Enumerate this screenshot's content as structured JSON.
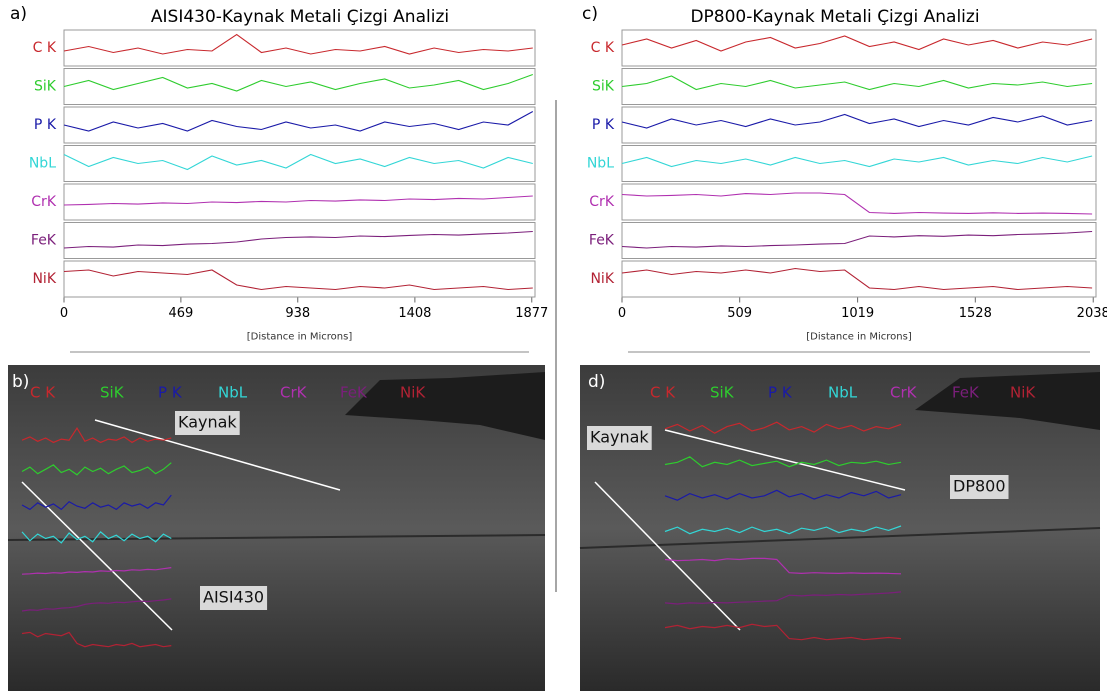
{
  "chart_data": [
    {
      "type": "line",
      "label": "a)",
      "title": "AISI430-Kaynak Metali Çizgi Analizi",
      "x_label": "[Distance in Microns]",
      "xlim": [
        0,
        1890
      ],
      "xticks": [
        0,
        469,
        938,
        1408,
        1877
      ],
      "x": [
        0,
        99,
        198,
        297,
        396,
        495,
        594,
        693,
        792,
        891,
        990,
        1089,
        1188,
        1287,
        1386,
        1485,
        1584,
        1683,
        1782,
        1881
      ],
      "series": [
        {
          "name": "C K",
          "color": "#c8282d",
          "values": [
            0.4,
            0.55,
            0.35,
            0.5,
            0.3,
            0.45,
            0.4,
            0.95,
            0.35,
            0.5,
            0.3,
            0.45,
            0.4,
            0.55,
            0.3,
            0.5,
            0.35,
            0.45,
            0.4,
            0.5
          ]
        },
        {
          "name": "SiK",
          "color": "#2ecc2e",
          "values": [
            0.5,
            0.7,
            0.4,
            0.6,
            0.8,
            0.45,
            0.6,
            0.35,
            0.7,
            0.5,
            0.65,
            0.4,
            0.6,
            0.75,
            0.45,
            0.55,
            0.7,
            0.4,
            0.6,
            0.9
          ]
        },
        {
          "name": "P K",
          "color": "#1a1aa8",
          "values": [
            0.5,
            0.3,
            0.6,
            0.4,
            0.55,
            0.3,
            0.65,
            0.45,
            0.35,
            0.6,
            0.4,
            0.5,
            0.3,
            0.6,
            0.45,
            0.55,
            0.35,
            0.6,
            0.5,
            0.95
          ]
        },
        {
          "name": "NbL",
          "color": "#33d6d6",
          "values": [
            0.8,
            0.4,
            0.7,
            0.5,
            0.6,
            0.3,
            0.75,
            0.45,
            0.6,
            0.35,
            0.8,
            0.5,
            0.65,
            0.4,
            0.7,
            0.5,
            0.6,
            0.35,
            0.7,
            0.5
          ]
        },
        {
          "name": "CrK",
          "color": "#b030b0",
          "values": [
            0.4,
            0.42,
            0.45,
            0.43,
            0.47,
            0.45,
            0.5,
            0.48,
            0.52,
            0.5,
            0.55,
            0.53,
            0.57,
            0.55,
            0.6,
            0.58,
            0.62,
            0.6,
            0.65,
            0.7
          ]
        },
        {
          "name": "FeK",
          "color": "#7b1f7b",
          "values": [
            0.25,
            0.3,
            0.28,
            0.35,
            0.33,
            0.38,
            0.4,
            0.45,
            0.55,
            0.6,
            0.62,
            0.6,
            0.65,
            0.63,
            0.67,
            0.7,
            0.68,
            0.72,
            0.75,
            0.8
          ]
        },
        {
          "name": "NiK",
          "color": "#b22234",
          "values": [
            0.75,
            0.8,
            0.6,
            0.75,
            0.7,
            0.65,
            0.8,
            0.3,
            0.15,
            0.25,
            0.2,
            0.15,
            0.25,
            0.2,
            0.3,
            0.15,
            0.2,
            0.25,
            0.15,
            0.2
          ]
        }
      ]
    },
    {
      "type": "line",
      "label": "c)",
      "title": "DP800-Kaynak Metali Çizgi Analizi",
      "x_label": "[Distance in Microns]",
      "xlim": [
        0,
        2050
      ],
      "xticks": [
        0,
        509,
        1019,
        1528,
        2038
      ],
      "x": [
        0,
        107,
        214,
        321,
        428,
        535,
        642,
        749,
        856,
        963,
        1070,
        1177,
        1284,
        1391,
        1498,
        1605,
        1712,
        1819,
        1926,
        2033
      ],
      "series": [
        {
          "name": "C K",
          "color": "#c8282d",
          "values": [
            0.6,
            0.8,
            0.5,
            0.75,
            0.4,
            0.7,
            0.85,
            0.5,
            0.65,
            0.9,
            0.55,
            0.7,
            0.45,
            0.8,
            0.6,
            0.75,
            0.5,
            0.7,
            0.6,
            0.8
          ]
        },
        {
          "name": "SiK",
          "color": "#2ecc2e",
          "values": [
            0.5,
            0.6,
            0.85,
            0.4,
            0.6,
            0.5,
            0.7,
            0.45,
            0.55,
            0.65,
            0.4,
            0.6,
            0.5,
            0.7,
            0.45,
            0.6,
            0.55,
            0.65,
            0.5,
            0.6
          ]
        },
        {
          "name": "P K",
          "color": "#1a1aa8",
          "values": [
            0.6,
            0.4,
            0.7,
            0.5,
            0.65,
            0.45,
            0.7,
            0.5,
            0.6,
            0.85,
            0.55,
            0.7,
            0.45,
            0.65,
            0.5,
            0.75,
            0.6,
            0.8,
            0.5,
            0.65
          ]
        },
        {
          "name": "NbL",
          "color": "#33d6d6",
          "values": [
            0.5,
            0.7,
            0.4,
            0.6,
            0.5,
            0.65,
            0.45,
            0.7,
            0.5,
            0.6,
            0.4,
            0.65,
            0.55,
            0.7,
            0.45,
            0.6,
            0.5,
            0.7,
            0.55,
            0.75
          ]
        },
        {
          "name": "CrK",
          "color": "#b030b0",
          "values": [
            0.75,
            0.7,
            0.72,
            0.75,
            0.7,
            0.78,
            0.75,
            0.8,
            0.8,
            0.75,
            0.15,
            0.12,
            0.15,
            0.13,
            0.12,
            0.14,
            0.12,
            0.13,
            0.12,
            0.1
          ]
        },
        {
          "name": "FeK",
          "color": "#7b1f7b",
          "values": [
            0.3,
            0.25,
            0.3,
            0.28,
            0.32,
            0.3,
            0.33,
            0.35,
            0.38,
            0.4,
            0.65,
            0.62,
            0.66,
            0.64,
            0.68,
            0.66,
            0.7,
            0.72,
            0.75,
            0.8
          ]
        },
        {
          "name": "NiK",
          "color": "#b22234",
          "values": [
            0.7,
            0.8,
            0.65,
            0.75,
            0.7,
            0.8,
            0.7,
            0.85,
            0.75,
            0.8,
            0.2,
            0.15,
            0.25,
            0.15,
            0.2,
            0.25,
            0.15,
            0.2,
            0.25,
            0.2
          ]
        }
      ]
    }
  ],
  "images": [
    {
      "label": "b)",
      "annotations": [
        "Kaynak",
        "AISI430"
      ]
    },
    {
      "label": "d)",
      "annotations": [
        "Kaynak",
        "DP800"
      ]
    }
  ]
}
